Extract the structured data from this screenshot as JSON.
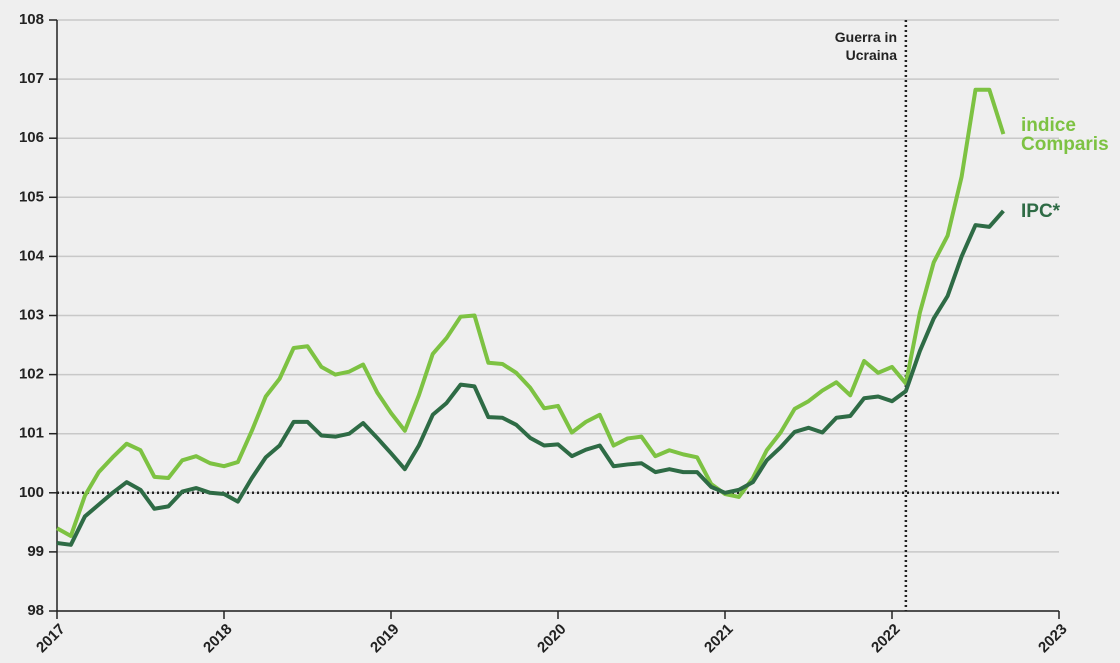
{
  "chart_data": {
    "type": "line",
    "x": [
      2017,
      2017.083,
      2017.167,
      2017.25,
      2017.333,
      2017.417,
      2017.5,
      2017.583,
      2017.667,
      2017.75,
      2017.833,
      2017.917,
      2018,
      2018.083,
      2018.167,
      2018.25,
      2018.333,
      2018.417,
      2018.5,
      2018.583,
      2018.667,
      2018.75,
      2018.833,
      2018.917,
      2019,
      2019.083,
      2019.167,
      2019.25,
      2019.333,
      2019.417,
      2019.5,
      2019.583,
      2019.667,
      2019.75,
      2019.833,
      2019.917,
      2020,
      2020.083,
      2020.167,
      2020.25,
      2020.333,
      2020.417,
      2020.5,
      2020.583,
      2020.667,
      2020.75,
      2020.833,
      2020.917,
      2021,
      2021.083,
      2021.167,
      2021.25,
      2021.333,
      2021.417,
      2021.5,
      2021.583,
      2021.667,
      2021.75,
      2021.833,
      2021.917,
      2022,
      2022.083,
      2022.167,
      2022.25,
      2022.333,
      2022.417,
      2022.5,
      2022.583,
      2022.667
    ],
    "series": [
      {
        "name": "indice Comparis",
        "color": "#7dc242",
        "values": [
          99.4,
          99.27,
          99.95,
          100.35,
          100.6,
          100.83,
          100.72,
          100.27,
          100.25,
          100.55,
          100.62,
          100.5,
          100.45,
          100.52,
          101.05,
          101.63,
          101.93,
          102.45,
          102.48,
          102.13,
          102.0,
          102.05,
          102.17,
          101.7,
          101.35,
          101.05,
          101.65,
          102.35,
          102.62,
          102.98,
          103.0,
          102.2,
          102.18,
          102.03,
          101.78,
          101.43,
          101.47,
          101.02,
          101.2,
          101.32,
          100.8,
          100.92,
          100.95,
          100.62,
          100.72,
          100.65,
          100.6,
          100.15,
          99.98,
          99.93,
          100.25,
          100.72,
          101.02,
          101.42,
          101.55,
          101.73,
          101.87,
          101.65,
          102.23,
          102.03,
          102.13,
          101.85,
          103.05,
          103.9,
          104.35,
          105.35,
          106.82,
          106.82,
          106.07
        ]
      },
      {
        "name": "IPC*",
        "color": "#2e6b45",
        "values": [
          99.15,
          99.12,
          99.6,
          99.8,
          100.0,
          100.18,
          100.05,
          99.73,
          99.77,
          100.02,
          100.08,
          100.0,
          99.98,
          99.85,
          100.25,
          100.6,
          100.8,
          101.2,
          101.2,
          100.97,
          100.95,
          101.0,
          101.18,
          100.93,
          100.67,
          100.4,
          100.8,
          101.32,
          101.52,
          101.83,
          101.8,
          101.28,
          101.27,
          101.15,
          100.93,
          100.8,
          100.82,
          100.62,
          100.73,
          100.8,
          100.45,
          100.48,
          100.5,
          100.35,
          100.4,
          100.35,
          100.35,
          100.1,
          100.0,
          100.05,
          100.18,
          100.55,
          100.77,
          101.03,
          101.1,
          101.02,
          101.27,
          101.3,
          101.6,
          101.63,
          101.55,
          101.72,
          102.4,
          102.95,
          103.33,
          104.0,
          104.53,
          104.5,
          104.77
        ]
      }
    ],
    "xlim": [
      2017,
      2023
    ],
    "xticks": [
      2017,
      2018,
      2019,
      2020,
      2021,
      2022,
      2023
    ],
    "ylim": [
      98,
      108
    ],
    "yticks": [
      98,
      99,
      100,
      101,
      102,
      103,
      104,
      105,
      106,
      107,
      108
    ],
    "grid": true,
    "reference_y": 100,
    "event": {
      "x": 2022.083,
      "label": "Guerra in Ucraina"
    }
  }
}
